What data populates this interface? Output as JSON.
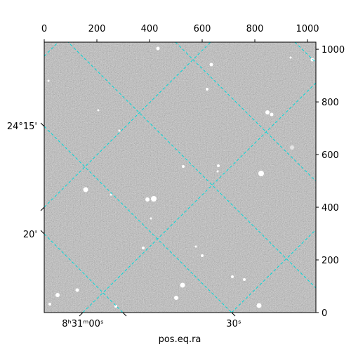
{
  "chart_data": {
    "type": "image",
    "xlabel": "pos.eq.ra",
    "xlim": [
      0,
      1032
    ],
    "xticks": [
      0,
      200,
      400,
      600,
      800,
      1000
    ],
    "ylim": [
      0,
      1027
    ],
    "yticks": [
      0,
      200,
      400,
      600,
      800,
      1000
    ],
    "ra_tick_labels": [
      "8ʰ31ᵐ00ˢ",
      "30ˢ"
    ],
    "dec_tick_labels": [
      "24°15'",
      "20'"
    ]
  }
}
